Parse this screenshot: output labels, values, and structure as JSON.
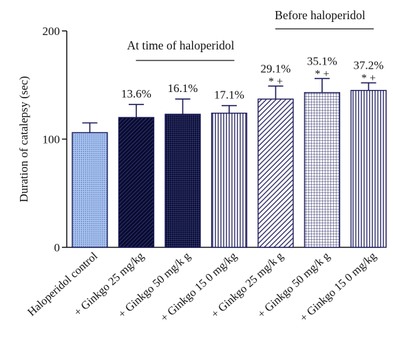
{
  "chart_data": {
    "type": "bar",
    "ylabel": "Duration of catalepsy (sec)",
    "ylim": [
      0,
      200
    ],
    "yticks": [
      0,
      100,
      200
    ],
    "grid": false,
    "groups": [
      {
        "label": "At time of haloperidol",
        "bar_indices": [
          1,
          2,
          3
        ]
      },
      {
        "label": "Before haloperidol",
        "bar_indices": [
          4,
          5,
          6
        ]
      }
    ],
    "categories": [
      "Haloperidol control",
      "+ Ginkgo 25 mg/kg",
      "+ Ginkgo 50 mg/k g",
      "+ Ginkgo 15 0 mg/kg",
      "+ Ginkgo 25 mg/k g",
      "+ Ginkgo 50 mg/k g",
      "+ Ginkgo 15 0 mg/kg"
    ],
    "values": [
      106,
      120,
      123,
      124,
      137,
      143,
      145
    ],
    "errors": [
      9,
      12,
      14,
      7,
      12,
      13,
      7
    ],
    "percent_labels": [
      "",
      "13.6%",
      "16.1%",
      "17.1%",
      "29.1%",
      "35.1%",
      "37.2%"
    ],
    "significance_marks": [
      "",
      "",
      "",
      "",
      "* +",
      "* +",
      "* +"
    ],
    "patterns": [
      "dots-light-blue",
      "diag-dark-navy",
      "grid-dark-navy",
      "vertical-lines",
      "diag-lines",
      "grid-lines",
      "vertical-lines"
    ],
    "colors": {
      "light_blue": "#8fb0e6",
      "navy": "#1a1a5a",
      "axis": "#111111"
    }
  }
}
